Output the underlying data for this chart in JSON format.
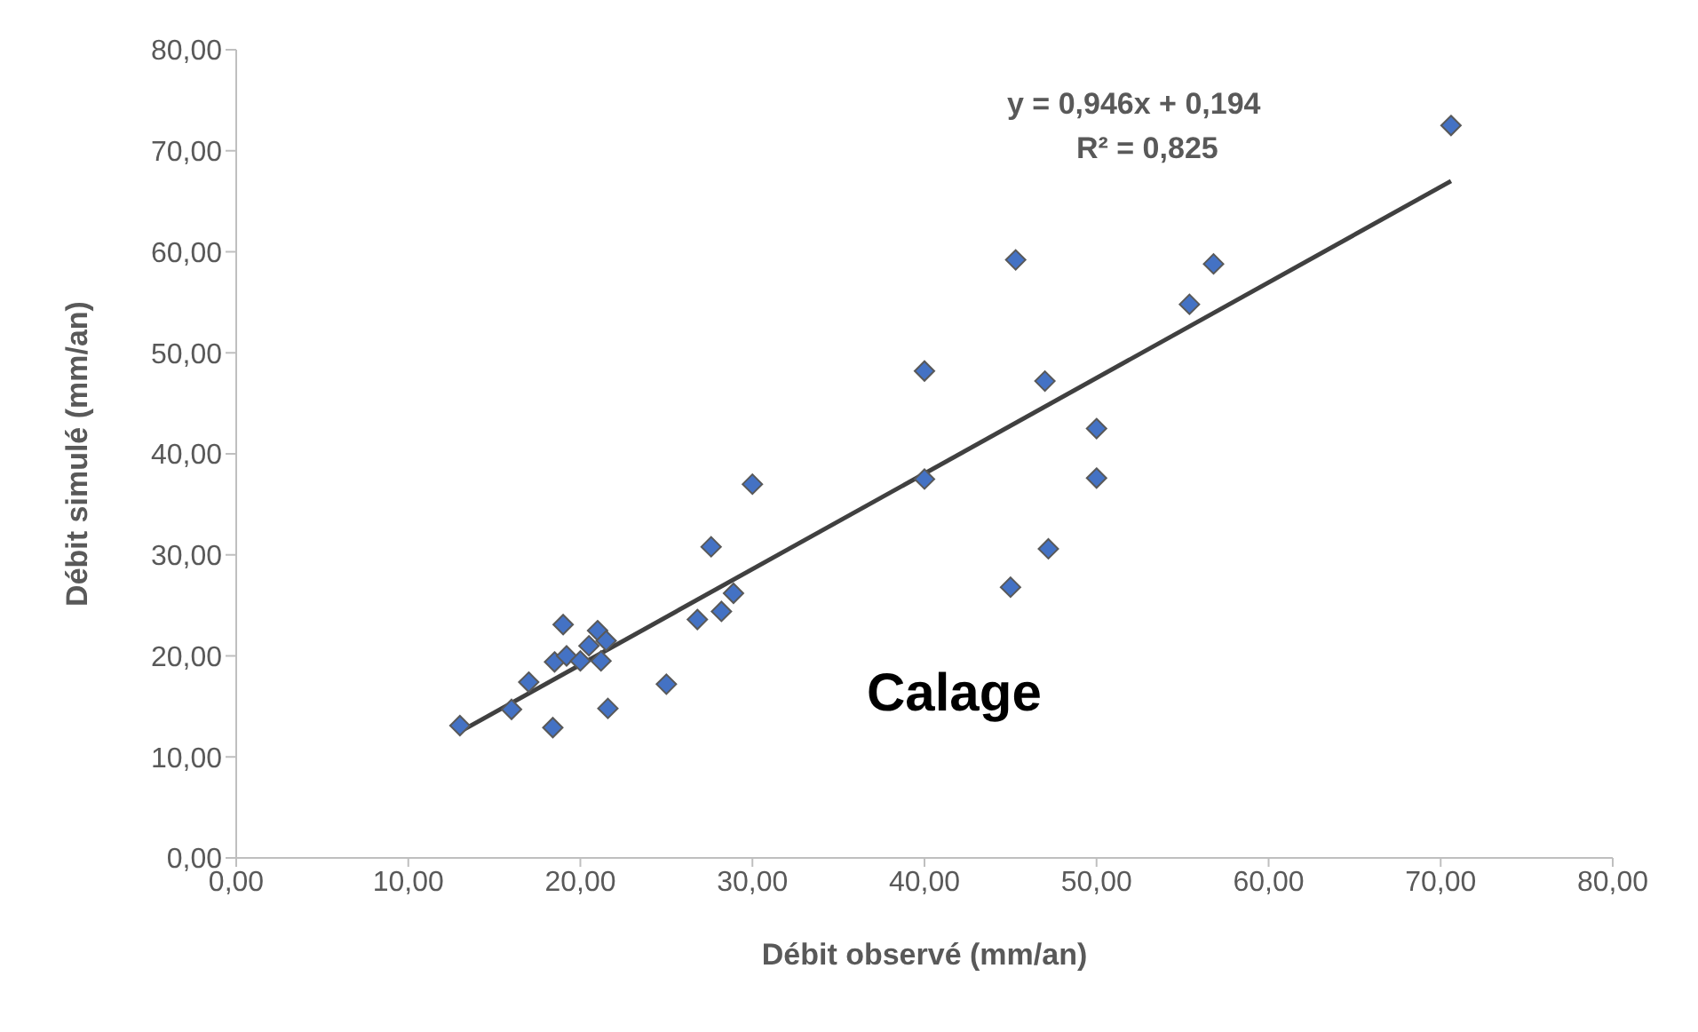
{
  "chart_data": {
    "type": "scatter",
    "xlabel": "Débit observé (mm/an)",
    "ylabel": "Débit simulé (mm/an)",
    "xlim": [
      0,
      80
    ],
    "ylim": [
      0,
      80
    ],
    "xticks": [
      {
        "value": 0,
        "label": "0,00"
      },
      {
        "value": 10,
        "label": "10,00"
      },
      {
        "value": 20,
        "label": "20,00"
      },
      {
        "value": 30,
        "label": "30,00"
      },
      {
        "value": 40,
        "label": "40,00"
      },
      {
        "value": 50,
        "label": "50,00"
      },
      {
        "value": 60,
        "label": "60,00"
      },
      {
        "value": 70,
        "label": "70,00"
      },
      {
        "value": 80,
        "label": "80,00"
      }
    ],
    "yticks": [
      {
        "value": 0,
        "label": "0,00"
      },
      {
        "value": 10,
        "label": "10,00"
      },
      {
        "value": 20,
        "label": "20,00"
      },
      {
        "value": 30,
        "label": "30,00"
      },
      {
        "value": 40,
        "label": "40,00"
      },
      {
        "value": 50,
        "label": "50,00"
      },
      {
        "value": 60,
        "label": "60,00"
      },
      {
        "value": 70,
        "label": "70,00"
      },
      {
        "value": 80,
        "label": "80,00"
      }
    ],
    "grid": false,
    "legend": false,
    "marker": "diamond",
    "series": [
      {
        "color": "#4472c4",
        "x": [
          13,
          16,
          17,
          18.4,
          18.5,
          19,
          19.2,
          20,
          20.5,
          21,
          21.2,
          21.5,
          21.6,
          25,
          26.8,
          27.6,
          28.2,
          28.9,
          30,
          40,
          40,
          45,
          45.3,
          47,
          47.2,
          50,
          50,
          55.4,
          56.8,
          70.6
        ],
        "values": [
          13.1,
          14.7,
          17.4,
          12.9,
          19.4,
          23.1,
          20,
          19.5,
          21,
          22.5,
          19.5,
          21.5,
          14.8,
          17.2,
          23.6,
          30.8,
          24.4,
          26.2,
          37,
          48.2,
          37.5,
          26.8,
          59.2,
          47.2,
          30.6,
          42.5,
          37.6,
          54.8,
          58.8,
          72.5
        ]
      },
      {
        "type": "line",
        "color": "#404040",
        "marker": "none",
        "x": [
          13,
          70.6
        ],
        "values": [
          12.5,
          67
        ]
      }
    ],
    "annotations": [
      "y = 0,946x + 0,194",
      "R² = 0,825",
      "Calage"
    ]
  }
}
